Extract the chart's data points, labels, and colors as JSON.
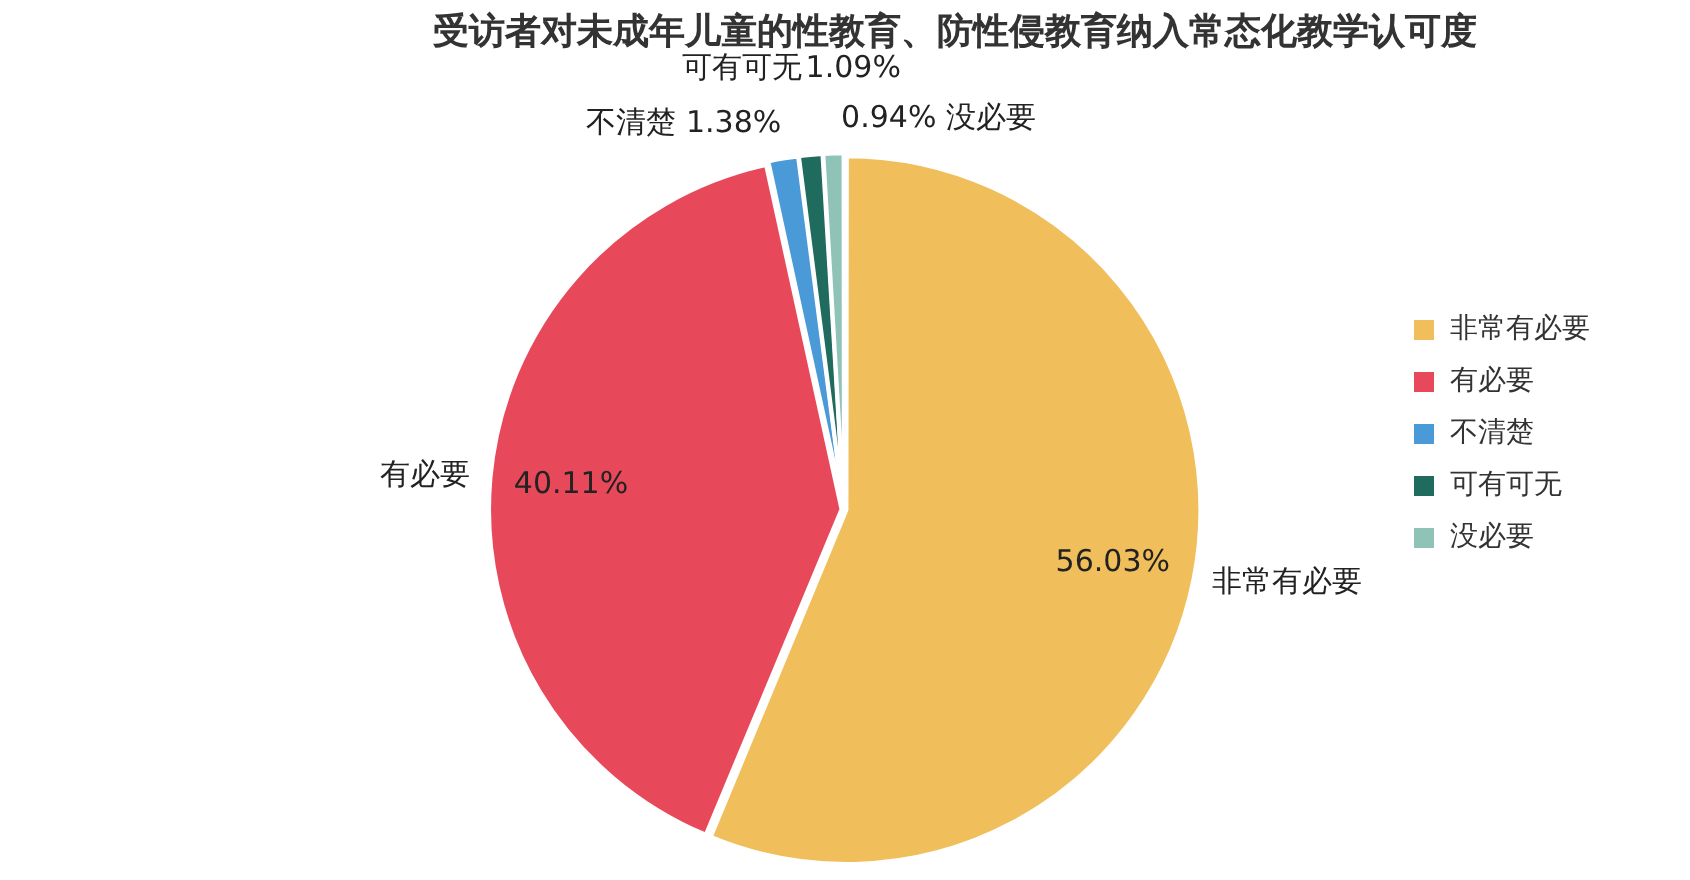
{
  "chart_data": {
    "type": "pie",
    "title": "受访者对未成年儿童的性教育、防性侵教育纳入常态化教学认可度",
    "categories": [
      "非常有必要",
      "有必要",
      "不清楚",
      "可有可无",
      "没必要"
    ],
    "values": [
      56.03,
      40.11,
      1.38,
      1.09,
      0.94
    ],
    "value_labels": [
      "56.03%",
      "40.11%",
      "1.38%",
      "1.09%",
      "0.94%"
    ],
    "colors": [
      "#f0be5a",
      "#e8495a",
      "#4b9ad8",
      "#1f6b5e",
      "#8fc3b8"
    ],
    "legend": "right"
  }
}
